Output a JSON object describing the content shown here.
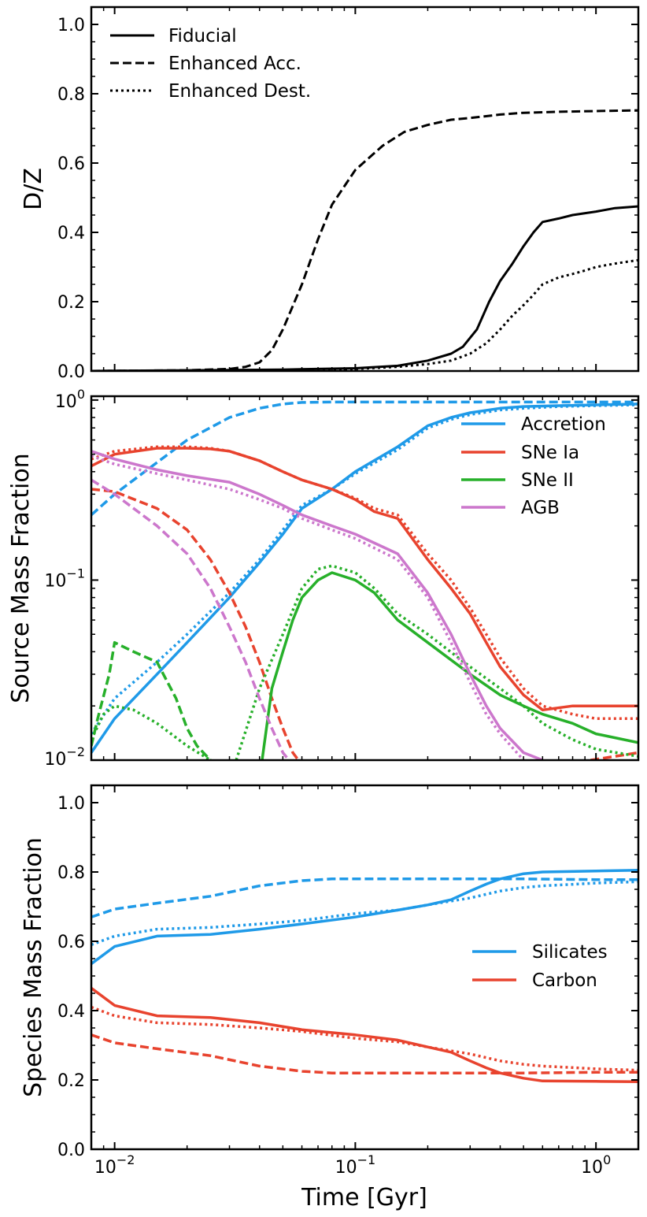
{
  "colors": {
    "accretion": "#1f9ae8",
    "sne_ia": "#e8432e",
    "sne_ii": "#27b02a",
    "agb": "#cc77cc",
    "silicates": "#1f9ae8",
    "carbon": "#e8432e",
    "black": "#000000"
  },
  "chart_data": [
    {
      "id": "dz",
      "type": "line",
      "xscale": "log",
      "yscale": "linear",
      "xlim": [
        0.008,
        1.5
      ],
      "ylim": [
        0,
        1.05
      ],
      "ylabel": "D/Z",
      "yticks": [
        0.0,
        0.2,
        0.4,
        0.6,
        0.8,
        1.0
      ],
      "ytick_labels": [
        "0.0",
        "0.2",
        "0.4",
        "0.6",
        "0.8",
        "1.0"
      ],
      "legend": {
        "placement": "top-left",
        "entries": [
          {
            "label": "Fiducial",
            "style": "solid"
          },
          {
            "label": "Enhanced Acc.",
            "style": "dashed"
          },
          {
            "label": "Enhanced Dest.",
            "style": "dotted"
          }
        ]
      },
      "series": [
        {
          "name": "Fiducial",
          "style": "solid",
          "color": "black",
          "x": [
            0.008,
            0.02,
            0.05,
            0.1,
            0.15,
            0.2,
            0.25,
            0.28,
            0.32,
            0.36,
            0.4,
            0.45,
            0.5,
            0.55,
            0.6,
            0.7,
            0.8,
            1.0,
            1.2,
            1.5
          ],
          "y": [
            0.0,
            0.002,
            0.004,
            0.008,
            0.015,
            0.03,
            0.05,
            0.07,
            0.12,
            0.2,
            0.26,
            0.31,
            0.36,
            0.4,
            0.43,
            0.44,
            0.45,
            0.46,
            0.47,
            0.475
          ]
        },
        {
          "name": "Enhanced Acc.",
          "style": "dashed",
          "color": "black",
          "x": [
            0.008,
            0.02,
            0.03,
            0.035,
            0.04,
            0.045,
            0.05,
            0.06,
            0.07,
            0.08,
            0.1,
            0.13,
            0.16,
            0.2,
            0.25,
            0.3,
            0.4,
            0.5,
            0.7,
            1.0,
            1.5
          ],
          "y": [
            0.0,
            0.002,
            0.006,
            0.012,
            0.025,
            0.06,
            0.12,
            0.25,
            0.38,
            0.48,
            0.58,
            0.65,
            0.69,
            0.71,
            0.725,
            0.73,
            0.74,
            0.745,
            0.748,
            0.75,
            0.752
          ]
        },
        {
          "name": "Enhanced Dest.",
          "style": "dotted",
          "color": "black",
          "x": [
            0.008,
            0.05,
            0.1,
            0.15,
            0.2,
            0.25,
            0.3,
            0.35,
            0.4,
            0.45,
            0.5,
            0.55,
            0.6,
            0.7,
            0.8,
            0.9,
            1.0,
            1.2,
            1.5
          ],
          "y": [
            0.0,
            0.003,
            0.006,
            0.012,
            0.02,
            0.03,
            0.05,
            0.08,
            0.12,
            0.16,
            0.19,
            0.22,
            0.25,
            0.27,
            0.28,
            0.29,
            0.3,
            0.31,
            0.32
          ]
        }
      ]
    },
    {
      "id": "source",
      "type": "line",
      "xscale": "log",
      "yscale": "log",
      "xlim": [
        0.008,
        1.5
      ],
      "ylim": [
        0.01,
        1.05
      ],
      "ylabel": "Source Mass Fraction",
      "yticks": [
        0.01,
        0.1,
        1
      ],
      "ytick_labels": [
        {
          "base": "10",
          "exp": "−2"
        },
        {
          "base": "10",
          "exp": "−1"
        },
        {
          "base": "10",
          "exp": "0"
        }
      ],
      "legend": {
        "placement": "top-right",
        "entries": [
          {
            "label": "Accretion",
            "color": "accretion"
          },
          {
            "label": "SNe Ia",
            "color": "sne_ia"
          },
          {
            "label": "SNe II",
            "color": "sne_ii"
          },
          {
            "label": "AGB",
            "color": "agb"
          }
        ]
      },
      "series": [
        {
          "name": "Accretion",
          "color": "accretion",
          "style": "solid",
          "x": [
            0.008,
            0.01,
            0.015,
            0.02,
            0.03,
            0.04,
            0.05,
            0.06,
            0.08,
            0.1,
            0.15,
            0.2,
            0.25,
            0.3,
            0.4,
            0.5,
            0.7,
            1.0,
            1.5
          ],
          "y": [
            0.011,
            0.017,
            0.03,
            0.045,
            0.08,
            0.125,
            0.18,
            0.25,
            0.32,
            0.4,
            0.55,
            0.72,
            0.8,
            0.85,
            0.9,
            0.92,
            0.93,
            0.94,
            0.95
          ]
        },
        {
          "name": "Accretion",
          "color": "accretion",
          "style": "dashed",
          "x": [
            0.008,
            0.01,
            0.015,
            0.02,
            0.03,
            0.04,
            0.05,
            0.06,
            0.08,
            0.1,
            0.15,
            0.2,
            0.5,
            1.0,
            1.5
          ],
          "y": [
            0.23,
            0.3,
            0.45,
            0.6,
            0.8,
            0.9,
            0.95,
            0.97,
            0.975,
            0.975,
            0.975,
            0.975,
            0.975,
            0.975,
            0.975
          ]
        },
        {
          "name": "Accretion",
          "color": "accretion",
          "style": "dotted",
          "x": [
            0.008,
            0.01,
            0.015,
            0.02,
            0.03,
            0.04,
            0.05,
            0.06,
            0.08,
            0.1,
            0.15,
            0.2,
            0.25,
            0.3,
            0.4,
            0.5,
            0.7,
            1.0,
            1.5
          ],
          "y": [
            0.014,
            0.022,
            0.035,
            0.05,
            0.085,
            0.13,
            0.19,
            0.26,
            0.32,
            0.39,
            0.53,
            0.7,
            0.78,
            0.83,
            0.88,
            0.9,
            0.92,
            0.93,
            0.94
          ]
        },
        {
          "name": "SNe Ia",
          "color": "sne_ia",
          "style": "solid",
          "x": [
            0.008,
            0.01,
            0.015,
            0.02,
            0.025,
            0.03,
            0.04,
            0.05,
            0.06,
            0.08,
            0.1,
            0.12,
            0.15,
            0.2,
            0.25,
            0.3,
            0.35,
            0.4,
            0.5,
            0.6,
            0.8,
            1.0,
            1.5
          ],
          "y": [
            0.43,
            0.5,
            0.54,
            0.54,
            0.535,
            0.52,
            0.46,
            0.4,
            0.36,
            0.32,
            0.28,
            0.24,
            0.22,
            0.13,
            0.09,
            0.065,
            0.045,
            0.033,
            0.023,
            0.019,
            0.02,
            0.02,
            0.02
          ]
        },
        {
          "name": "SNe Ia",
          "color": "sne_ia",
          "style": "dashed",
          "x": [
            0.008,
            0.01,
            0.015,
            0.02,
            0.025,
            0.03,
            0.035,
            0.04,
            0.045,
            0.05,
            0.055,
            0.058
          ],
          "y": [
            0.32,
            0.31,
            0.25,
            0.19,
            0.13,
            0.085,
            0.055,
            0.035,
            0.022,
            0.015,
            0.011,
            0.01
          ]
        },
        {
          "name": "SNe Ia",
          "color": "sne_ia",
          "style": "dashed",
          "x": [
            0.95,
            1.2,
            1.5
          ],
          "y": [
            0.01,
            0.0105,
            0.011
          ]
        },
        {
          "name": "SNe Ia",
          "color": "sne_ia",
          "style": "dotted",
          "x": [
            0.008,
            0.01,
            0.015,
            0.02,
            0.025,
            0.03,
            0.04,
            0.05,
            0.06,
            0.08,
            0.1,
            0.12,
            0.15,
            0.2,
            0.25,
            0.3,
            0.35,
            0.4,
            0.5,
            0.6,
            0.8,
            1.0,
            1.5
          ],
          "y": [
            0.47,
            0.52,
            0.55,
            0.55,
            0.54,
            0.52,
            0.46,
            0.4,
            0.36,
            0.32,
            0.285,
            0.25,
            0.23,
            0.14,
            0.1,
            0.07,
            0.05,
            0.037,
            0.025,
            0.02,
            0.018,
            0.017,
            0.017
          ]
        },
        {
          "name": "SNe II",
          "color": "sne_ii",
          "style": "solid",
          "x": [
            0.041,
            0.045,
            0.05,
            0.055,
            0.06,
            0.07,
            0.08,
            0.1,
            0.12,
            0.15,
            0.2,
            0.3,
            0.4,
            0.5,
            0.6,
            0.8,
            1.0,
            1.5
          ],
          "y": [
            0.01,
            0.025,
            0.04,
            0.06,
            0.08,
            0.1,
            0.11,
            0.1,
            0.085,
            0.06,
            0.045,
            0.03,
            0.023,
            0.02,
            0.018,
            0.016,
            0.014,
            0.0125
          ]
        },
        {
          "name": "SNe II",
          "color": "sne_ii",
          "style": "dashed",
          "x": [
            0.008,
            0.0085,
            0.0095,
            0.01,
            0.012,
            0.015,
            0.018,
            0.02,
            0.022,
            0.025
          ],
          "y": [
            0.012,
            0.017,
            0.03,
            0.045,
            0.04,
            0.035,
            0.022,
            0.015,
            0.012,
            0.01
          ]
        },
        {
          "name": "SNe II",
          "color": "sne_ii",
          "style": "dotted",
          "x": [
            0.008,
            0.009,
            0.01,
            0.012,
            0.015,
            0.02,
            0.025
          ],
          "y": [
            0.013,
            0.018,
            0.02,
            0.019,
            0.016,
            0.012,
            0.01
          ]
        },
        {
          "name": "SNe II",
          "color": "sne_ii",
          "style": "dotted",
          "x": [
            0.032,
            0.04,
            0.05,
            0.06,
            0.07,
            0.08,
            0.1,
            0.12,
            0.15,
            0.2,
            0.3,
            0.4,
            0.5,
            0.6,
            0.8,
            1.0,
            1.5
          ],
          "y": [
            0.01,
            0.025,
            0.05,
            0.09,
            0.115,
            0.12,
            0.11,
            0.09,
            0.065,
            0.05,
            0.033,
            0.025,
            0.02,
            0.016,
            0.013,
            0.0115,
            0.0105
          ]
        },
        {
          "name": "AGB",
          "color": "agb",
          "style": "solid",
          "x": [
            0.008,
            0.01,
            0.015,
            0.02,
            0.03,
            0.04,
            0.05,
            0.06,
            0.08,
            0.1,
            0.15,
            0.2,
            0.25,
            0.3,
            0.35,
            0.4,
            0.5,
            0.6
          ],
          "y": [
            0.52,
            0.47,
            0.41,
            0.38,
            0.35,
            0.3,
            0.26,
            0.23,
            0.2,
            0.18,
            0.14,
            0.085,
            0.05,
            0.03,
            0.02,
            0.015,
            0.011,
            0.01
          ]
        },
        {
          "name": "AGB",
          "color": "agb",
          "style": "dashed",
          "x": [
            0.008,
            0.01,
            0.015,
            0.02,
            0.025,
            0.03,
            0.035,
            0.04,
            0.045,
            0.05,
            0.053
          ],
          "y": [
            0.36,
            0.3,
            0.2,
            0.14,
            0.09,
            0.055,
            0.035,
            0.022,
            0.015,
            0.011,
            0.01
          ]
        },
        {
          "name": "AGB",
          "color": "agb",
          "style": "dotted",
          "x": [
            0.008,
            0.01,
            0.015,
            0.02,
            0.03,
            0.04,
            0.05,
            0.06,
            0.08,
            0.1,
            0.15,
            0.2,
            0.25,
            0.3,
            0.35,
            0.4,
            0.5
          ],
          "y": [
            0.49,
            0.44,
            0.39,
            0.36,
            0.32,
            0.28,
            0.25,
            0.22,
            0.19,
            0.17,
            0.13,
            0.08,
            0.045,
            0.027,
            0.018,
            0.014,
            0.01
          ]
        }
      ]
    },
    {
      "id": "species",
      "type": "line",
      "xscale": "log",
      "yscale": "linear",
      "xlim": [
        0.008,
        1.5
      ],
      "ylim": [
        0,
        1.05
      ],
      "xlabel": "Time [Gyr]",
      "ylabel": "Species Mass Fraction",
      "yticks": [
        0.0,
        0.2,
        0.4,
        0.6,
        0.8,
        1.0
      ],
      "ytick_labels": [
        "0.0",
        "0.2",
        "0.4",
        "0.6",
        "0.8",
        "1.0"
      ],
      "xticks": [
        0.01,
        0.1,
        1
      ],
      "xtick_labels": [
        {
          "base": "10",
          "exp": "−2"
        },
        {
          "base": "10",
          "exp": "−1"
        },
        {
          "base": "10",
          "exp": "0"
        }
      ],
      "legend": {
        "placement": "center-right",
        "entries": [
          {
            "label": "Silicates",
            "color": "silicates"
          },
          {
            "label": "Carbon",
            "color": "carbon"
          }
        ]
      },
      "series": [
        {
          "name": "Silicates",
          "color": "silicates",
          "style": "solid",
          "x": [
            0.008,
            0.01,
            0.015,
            0.025,
            0.04,
            0.06,
            0.1,
            0.15,
            0.2,
            0.25,
            0.3,
            0.35,
            0.4,
            0.5,
            0.6,
            1.0,
            1.5
          ],
          "y": [
            0.535,
            0.585,
            0.615,
            0.62,
            0.635,
            0.65,
            0.67,
            0.69,
            0.705,
            0.72,
            0.745,
            0.765,
            0.78,
            0.795,
            0.8,
            0.803,
            0.805
          ]
        },
        {
          "name": "Silicates",
          "color": "silicates",
          "style": "dashed",
          "x": [
            0.008,
            0.01,
            0.015,
            0.025,
            0.04,
            0.06,
            0.08,
            0.1,
            0.2,
            0.5,
            1.0,
            1.5
          ],
          "y": [
            0.67,
            0.693,
            0.71,
            0.73,
            0.76,
            0.775,
            0.78,
            0.78,
            0.78,
            0.78,
            0.778,
            0.778
          ]
        },
        {
          "name": "Silicates",
          "color": "silicates",
          "style": "dotted",
          "x": [
            0.008,
            0.01,
            0.015,
            0.025,
            0.04,
            0.06,
            0.1,
            0.15,
            0.2,
            0.3,
            0.4,
            0.5,
            0.6,
            1.0,
            1.5
          ],
          "y": [
            0.59,
            0.615,
            0.635,
            0.64,
            0.65,
            0.66,
            0.68,
            0.69,
            0.705,
            0.725,
            0.745,
            0.755,
            0.76,
            0.768,
            0.772
          ]
        },
        {
          "name": "Carbon",
          "color": "carbon",
          "style": "solid",
          "x": [
            0.008,
            0.01,
            0.015,
            0.025,
            0.04,
            0.06,
            0.1,
            0.15,
            0.2,
            0.25,
            0.3,
            0.35,
            0.4,
            0.5,
            0.6,
            1.0,
            1.5
          ],
          "y": [
            0.465,
            0.415,
            0.385,
            0.38,
            0.365,
            0.345,
            0.33,
            0.315,
            0.295,
            0.28,
            0.255,
            0.235,
            0.22,
            0.205,
            0.197,
            0.196,
            0.195
          ]
        },
        {
          "name": "Carbon",
          "color": "carbon",
          "style": "dashed",
          "x": [
            0.008,
            0.01,
            0.015,
            0.025,
            0.04,
            0.06,
            0.08,
            0.1,
            0.2,
            0.5,
            1.0,
            1.5
          ],
          "y": [
            0.33,
            0.307,
            0.29,
            0.27,
            0.24,
            0.225,
            0.22,
            0.22,
            0.22,
            0.22,
            0.222,
            0.222
          ]
        },
        {
          "name": "Carbon",
          "color": "carbon",
          "style": "dotted",
          "x": [
            0.008,
            0.01,
            0.015,
            0.025,
            0.04,
            0.06,
            0.1,
            0.15,
            0.2,
            0.3,
            0.4,
            0.5,
            0.6,
            1.0,
            1.5
          ],
          "y": [
            0.41,
            0.385,
            0.365,
            0.36,
            0.35,
            0.34,
            0.32,
            0.31,
            0.295,
            0.275,
            0.255,
            0.245,
            0.24,
            0.232,
            0.228
          ]
        }
      ]
    }
  ]
}
